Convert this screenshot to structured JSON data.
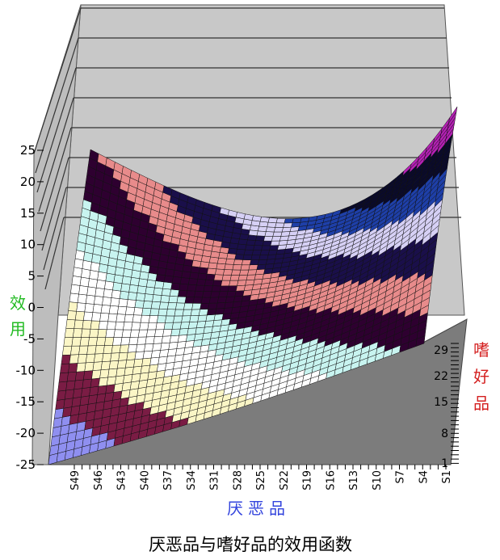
{
  "chart_data": {
    "type": "surface",
    "title": "厌恶品与嗜好品的效用函数",
    "zlabel": "效用",
    "ylabel": "嗜好品",
    "xlabel": "厌恶品",
    "zlim": [
      -25,
      25
    ],
    "z_ticks": [
      "25",
      "20",
      "15",
      "10",
      "5",
      "0",
      "-5",
      "-10",
      "-15",
      "-20",
      "-25"
    ],
    "y_ticks": [
      "29",
      "22",
      "15",
      "8",
      "1"
    ],
    "x_ticks": [
      "S49",
      "S46",
      "S43",
      "S40",
      "S37",
      "S34",
      "S31",
      "S28",
      "S25",
      "S22",
      "S19",
      "S16",
      "S13",
      "S10",
      "S7",
      "S4",
      "S1"
    ],
    "grid": true,
    "band_colors": [
      "#8f8ff0",
      "#7a1c44",
      "#fbf6c6",
      "#ffffff",
      "#c8f4f0",
      "#2e0030",
      "#e88b8b",
      "#1a0f4a",
      "#d6d0f5",
      "#1e3fa8",
      "#0a0a2a",
      "#b520b5"
    ]
  }
}
